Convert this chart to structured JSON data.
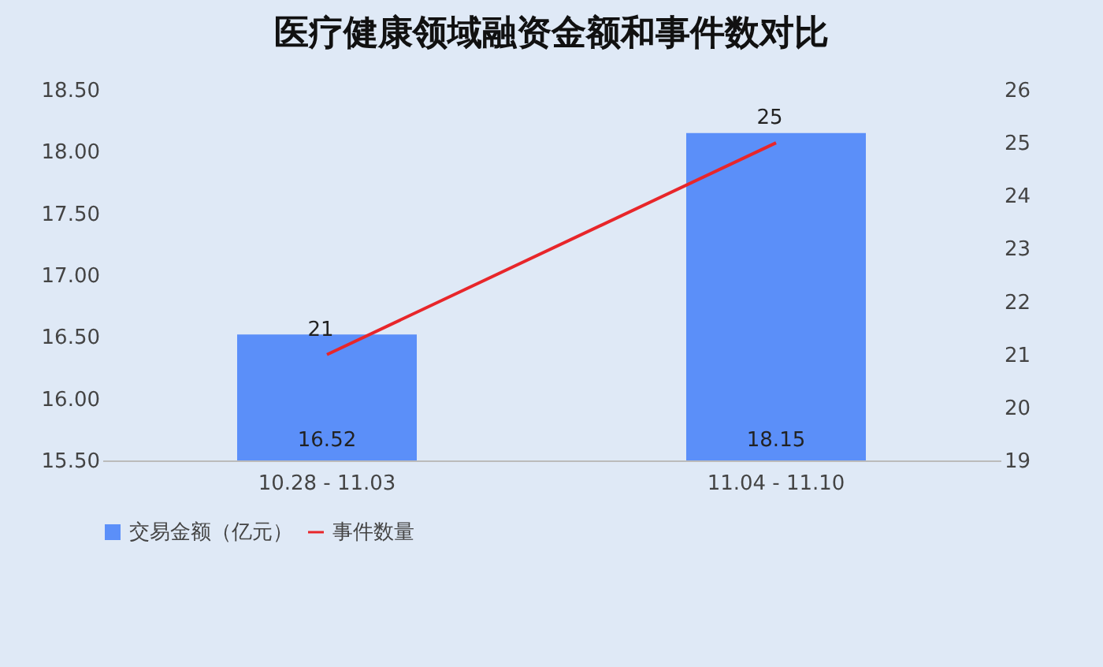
{
  "chart_data": {
    "type": "bar",
    "title": "医疗健康领域融资金额和事件数对比",
    "categories": [
      "10.28 - 11.03",
      "11.04 - 11.10"
    ],
    "series": [
      {
        "name": "交易金额（亿元）",
        "color": "#5b8ff9",
        "values": [
          16.52,
          18.15
        ]
      },
      {
        "name": "事件数量",
        "type": "line",
        "axis": "y2",
        "color": "#e8262a",
        "values": [
          21,
          25
        ]
      }
    ],
    "ylim": [
      15.5,
      18.5
    ],
    "yticks": [
      {
        "value": 15.5,
        "label": "15.50"
      },
      {
        "value": 16,
        "label": "16.00"
      },
      {
        "value": 16.5,
        "label": "16.50"
      },
      {
        "value": 17,
        "label": "17.00"
      },
      {
        "value": 17.5,
        "label": "17.50"
      },
      {
        "value": 18,
        "label": "18.00"
      },
      {
        "value": 18.5,
        "label": "18.50"
      }
    ],
    "y2lim": [
      19,
      26
    ],
    "y2ticks": [
      19,
      20,
      21,
      22,
      23,
      24,
      25,
      26
    ],
    "data_labels": true,
    "grid": false,
    "legend": "bottom"
  }
}
